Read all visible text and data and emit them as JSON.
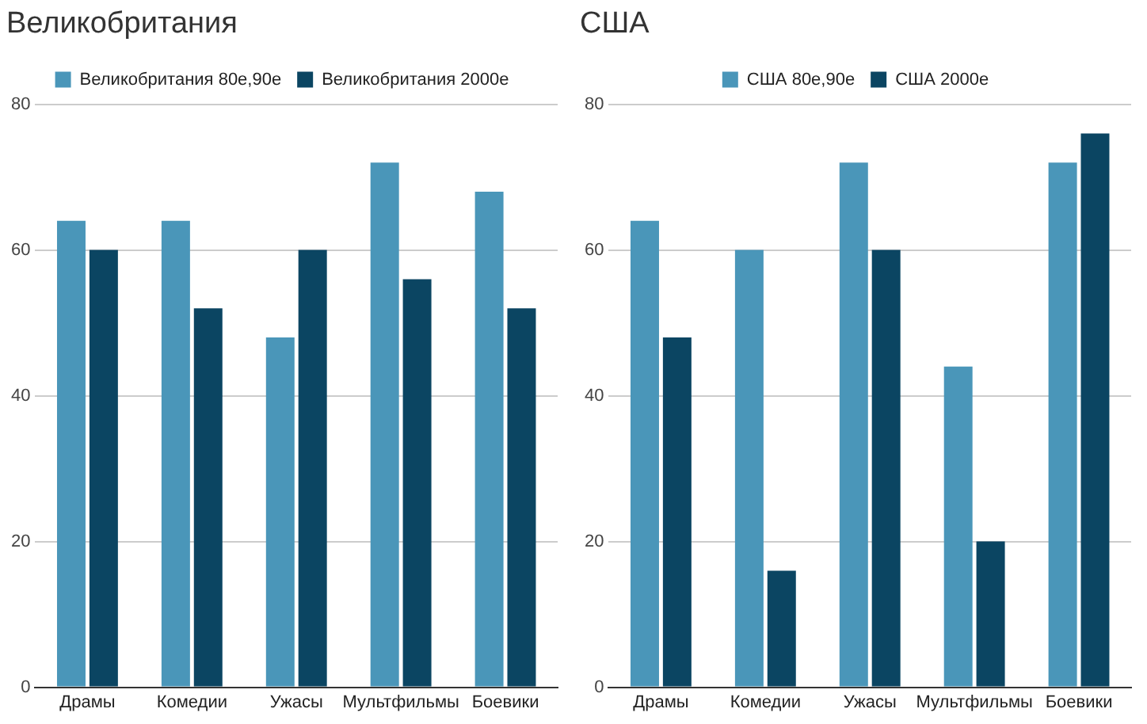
{
  "chart_data": [
    {
      "type": "bar",
      "title": "Великобритания",
      "categories": [
        "Драмы",
        "Комедии",
        "Ужасы",
        "Мультфильмы",
        "Боевики"
      ],
      "series": [
        {
          "name": "Великобритания 80е,90е",
          "color": "#4a96b9",
          "values": [
            64,
            64,
            48,
            72,
            68
          ]
        },
        {
          "name": "Великобритания 2000е",
          "color": "#0b4562",
          "values": [
            60,
            52,
            60,
            56,
            52
          ]
        }
      ],
      "ylim": [
        0,
        80
      ],
      "yticks": [
        0,
        20,
        40,
        60,
        80
      ],
      "grid": "y",
      "legend": "top"
    },
    {
      "type": "bar",
      "title": "США",
      "categories": [
        "Драмы",
        "Комедии",
        "Ужасы",
        "Мультфильмы",
        "Боевики"
      ],
      "series": [
        {
          "name": "США 80е,90е",
          "color": "#4a96b9",
          "values": [
            64,
            60,
            72,
            44,
            72
          ]
        },
        {
          "name": "США 2000е",
          "color": "#0b4562",
          "values": [
            48,
            16,
            60,
            20,
            76
          ]
        }
      ],
      "ylim": [
        0,
        80
      ],
      "yticks": [
        0,
        20,
        40,
        60,
        80
      ],
      "grid": "y",
      "legend": "top"
    }
  ]
}
